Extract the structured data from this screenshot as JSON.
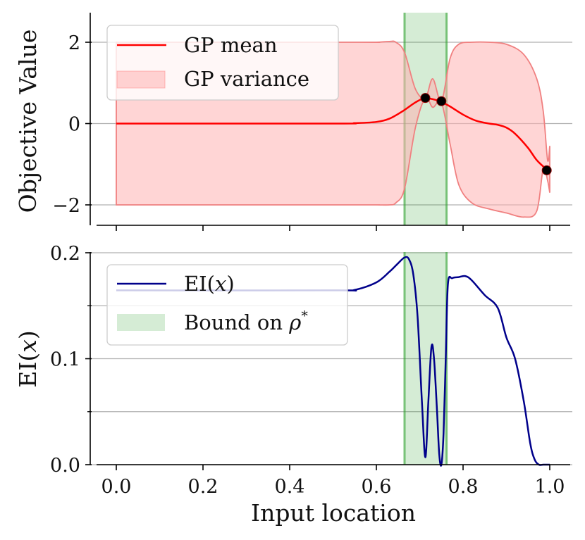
{
  "chart_data": [
    {
      "type": "line",
      "ylabel": "Objective Value",
      "xlim": [
        -0.05,
        1.05
      ],
      "ylim": [
        -2.5,
        2.7
      ],
      "yticks": [
        -2,
        0,
        2
      ],
      "ytick_labels": [
        "−2",
        "0",
        "2"
      ],
      "grid": "horizontal",
      "legend": {
        "placement": "top-left",
        "entries": [
          "GP mean",
          "GP variance"
        ]
      },
      "series": [
        {
          "name": "GP mean",
          "type": "line",
          "color": "#ff0000",
          "x": [
            0.0,
            0.5,
            0.55,
            0.6,
            0.63,
            0.66,
            0.69,
            0.71,
            0.73,
            0.75,
            0.77,
            0.8,
            0.83,
            0.86,
            0.88,
            0.9,
            0.92,
            0.95,
            0.97,
            0.995
          ],
          "y": [
            0.0,
            0.0,
            0.01,
            0.04,
            0.12,
            0.3,
            0.52,
            0.62,
            0.6,
            0.53,
            0.42,
            0.22,
            0.07,
            0.0,
            -0.03,
            -0.1,
            -0.25,
            -0.6,
            -0.9,
            -1.15
          ]
        },
        {
          "name": "GP variance",
          "type": "band",
          "color": "#ffb3b3",
          "x": [
            0.0,
            0.55,
            0.6,
            0.63,
            0.645,
            0.665,
            0.69,
            0.713,
            0.73,
            0.75,
            0.77,
            0.79,
            0.82,
            0.86,
            0.9,
            0.94,
            0.97,
            0.985,
            0.995,
            1.0
          ],
          "upper": [
            2.0,
            2.0,
            2.0,
            2.02,
            2.0,
            1.75,
            0.85,
            0.63,
            1.1,
            0.55,
            1.6,
            1.95,
            2.0,
            2.0,
            1.95,
            1.7,
            1.1,
            0.3,
            -0.9,
            -0.55
          ],
          "lower": [
            -2.0,
            -2.0,
            -2.0,
            -2.0,
            -1.95,
            -1.6,
            -0.1,
            0.63,
            0.4,
            0.52,
            -0.5,
            -1.5,
            -1.95,
            -2.1,
            -2.2,
            -2.3,
            -2.15,
            -1.1,
            -1.4,
            -1.7
          ]
        }
      ],
      "observations": {
        "x": [
          0.713,
          0.75,
          0.993
        ],
        "y": [
          0.63,
          0.55,
          -1.15
        ]
      },
      "bound_region": {
        "x0": 0.665,
        "x1": 0.762
      }
    },
    {
      "type": "line",
      "xlabel": "Input location",
      "ylabel": "EI(x)",
      "xlim": [
        -0.05,
        1.05
      ],
      "ylim": [
        0.0,
        0.2
      ],
      "xticks": [
        0.0,
        0.2,
        0.4,
        0.6,
        0.8,
        1.0
      ],
      "xtick_labels": [
        "0.0",
        "0.2",
        "0.4",
        "0.6",
        "0.8",
        "1.0"
      ],
      "yticks": [
        0.0,
        0.1,
        0.2
      ],
      "ytick_labels": [
        "0.0",
        "0.1",
        "0.2"
      ],
      "minor_yticks": [
        0.05,
        0.15
      ],
      "grid": "horizontal",
      "legend": {
        "placement": "top-left",
        "entries": [
          "EI(x)",
          "Bound on ρ*"
        ]
      },
      "series": [
        {
          "name": "EI(x)",
          "type": "line",
          "color": "#00008b",
          "x": [
            0.0,
            0.5,
            0.55,
            0.6,
            0.63,
            0.65,
            0.665,
            0.675,
            0.685,
            0.695,
            0.705,
            0.713,
            0.72,
            0.727,
            0.733,
            0.74,
            0.745,
            0.75,
            0.755,
            0.76,
            0.765,
            0.775,
            0.79,
            0.805,
            0.82,
            0.85,
            0.88,
            0.9,
            0.92,
            0.94,
            0.955,
            0.965,
            0.975,
            0.985,
            1.0
          ],
          "y": [
            0.1645,
            0.1645,
            0.165,
            0.172,
            0.182,
            0.19,
            0.1955,
            0.194,
            0.18,
            0.14,
            0.06,
            0.007,
            0.06,
            0.111,
            0.1,
            0.05,
            0.01,
            0.0,
            0.03,
            0.1,
            0.17,
            0.176,
            0.177,
            0.178,
            0.174,
            0.16,
            0.148,
            0.12,
            0.1,
            0.06,
            0.02,
            0.005,
            0.0,
            0.0,
            0.0
          ]
        }
      ],
      "bound_region": {
        "name": "Bound on ρ*",
        "x0": 0.665,
        "x1": 0.762,
        "color": "#2ca02c"
      }
    }
  ]
}
